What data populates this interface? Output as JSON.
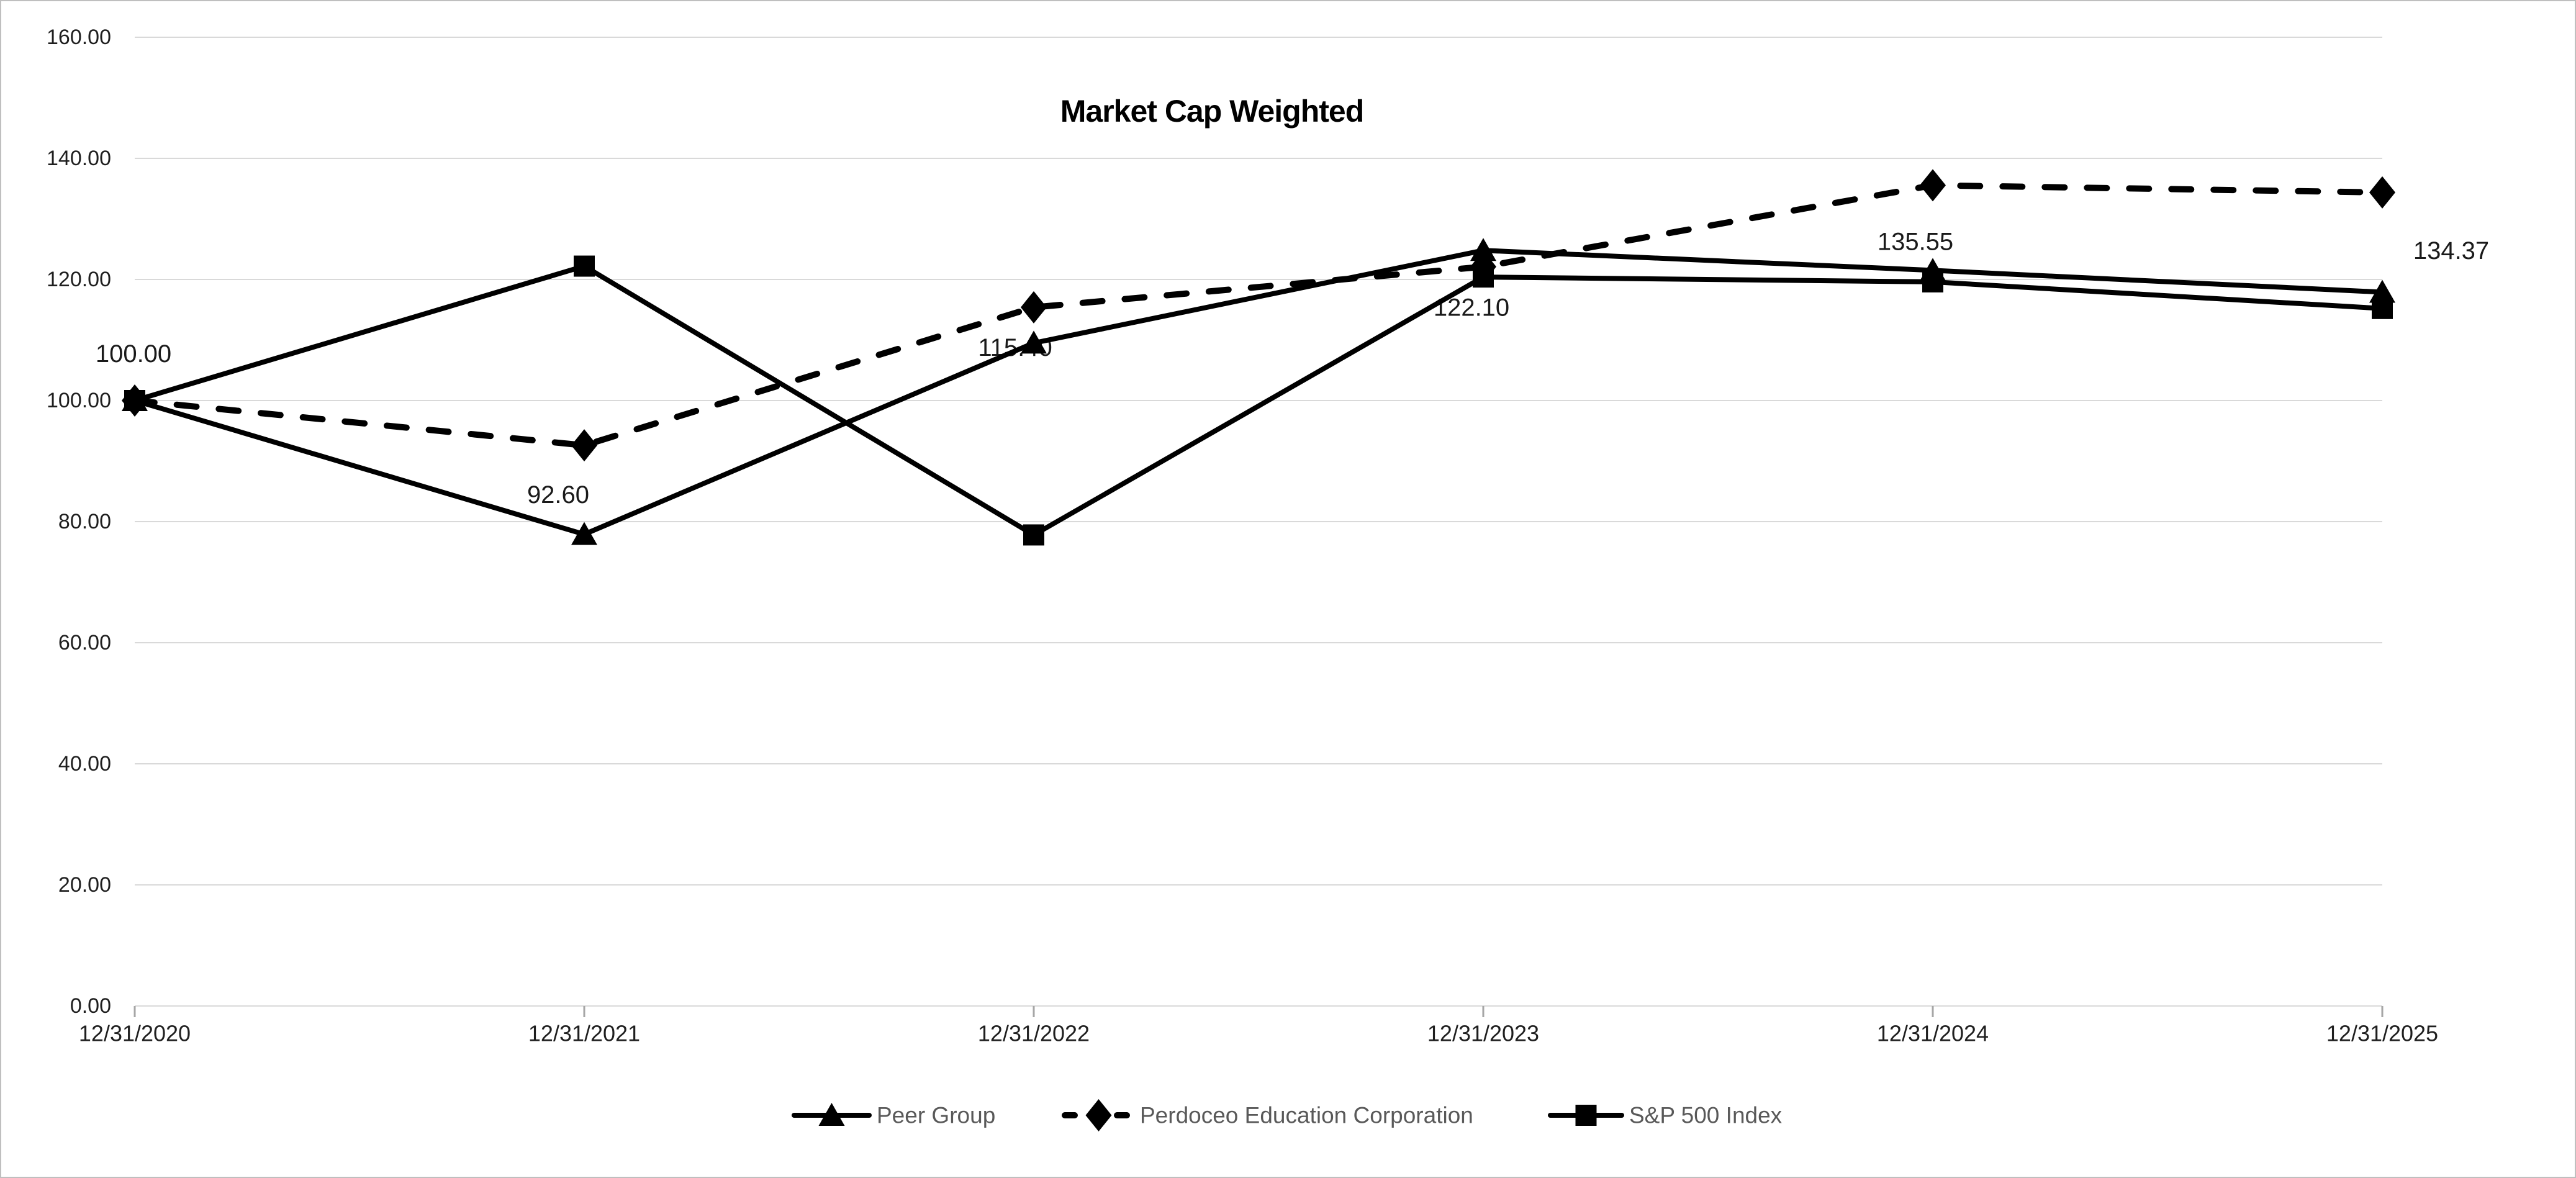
{
  "chart_data": {
    "type": "line",
    "title": "Market Cap Weighted",
    "categories": [
      "12/31/2020",
      "12/31/2021",
      "12/31/2022",
      "12/31/2023",
      "12/31/2024",
      "12/31/2025"
    ],
    "series": [
      {
        "name": "Peer Group",
        "marker": "triangle",
        "line_style": "solid",
        "values": [
          100.0,
          77.9,
          109.5,
          124.8,
          121.5,
          117.9
        ]
      },
      {
        "name": "Perdoceo Education Corporation",
        "marker": "diamond",
        "line_style": "dashed",
        "values": [
          100.0,
          92.6,
          115.4,
          122.1,
          135.55,
          134.37
        ],
        "data_labels": [
          "100.00",
          "92.60",
          "115.40",
          "122.10",
          "135.55",
          "134.37"
        ]
      },
      {
        "name": "S&P 500 Index",
        "marker": "square",
        "line_style": "solid",
        "values": [
          100.0,
          122.2,
          77.8,
          120.4,
          119.6,
          115.2
        ]
      }
    ],
    "y_axis": {
      "min": 0,
      "max": 160,
      "step": 20,
      "tick_labels": [
        "0.00",
        "20.00",
        "40.00",
        "60.00",
        "80.00",
        "100.00",
        "120.00",
        "140.00",
        "160.00"
      ]
    },
    "x_axis": {
      "tick_labels": [
        "12/31/2020",
        "12/31/2021",
        "12/31/2022",
        "12/31/2023",
        "12/31/2024",
        "12/31/2025"
      ]
    },
    "legend": {
      "position": "bottom",
      "entries": [
        "Peer Group",
        "Perdoceo Education Corporation",
        "S&P 500 Index"
      ]
    },
    "grid": "horizontal",
    "ylim": [
      0,
      160
    ],
    "colors": {
      "series_line": "#000000",
      "gridline": "#d9d9d9",
      "axis_tick": "#a6a6a6",
      "axis_text": "#1f1f1f",
      "data_label_text": "#1a1a1a",
      "legend_text": "#595959",
      "background": "#ffffff",
      "border": "#bfbfbf"
    }
  }
}
